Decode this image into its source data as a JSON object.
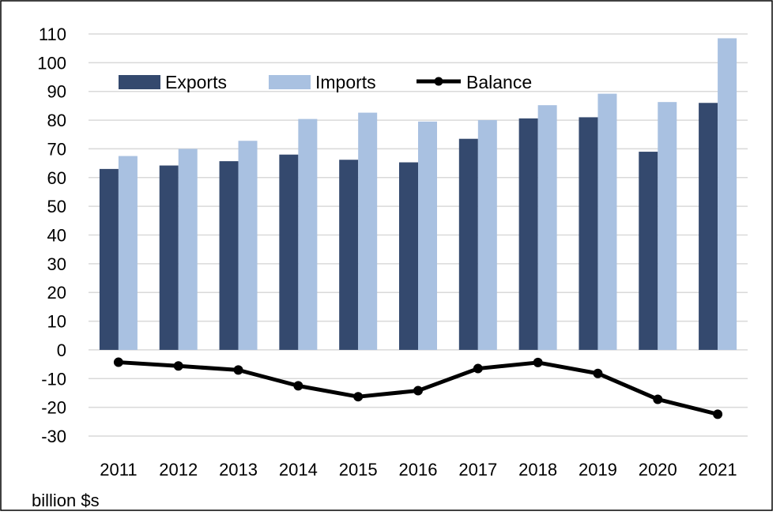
{
  "chart_data": {
    "type": "bar",
    "title": "",
    "xlabel": "",
    "ylabel": "",
    "unit_label": "billion $s",
    "categories": [
      "2011",
      "2012",
      "2013",
      "2014",
      "2015",
      "2016",
      "2017",
      "2018",
      "2019",
      "2020",
      "2021"
    ],
    "ylim": [
      -30,
      110
    ],
    "yticks": [
      "110",
      "100",
      "90",
      "80",
      "70",
      "60",
      "50",
      "40",
      "30",
      "20",
      "10",
      "0",
      "-10",
      "-20",
      "-30"
    ],
    "grid": true,
    "legend_position": "top-left",
    "series": [
      {
        "name": "Exports",
        "kind": "bar",
        "color": "#34496e",
        "values": [
          63,
          64.2,
          65.7,
          68,
          66.2,
          65.3,
          73.5,
          80.6,
          81,
          69,
          86
        ]
      },
      {
        "name": "Imports",
        "kind": "bar",
        "color": "#a9c1e1",
        "values": [
          67.5,
          70,
          72.8,
          80.4,
          82.6,
          79.5,
          80,
          85.2,
          89.2,
          86.3,
          108.5
        ]
      },
      {
        "name": "Balance",
        "kind": "line",
        "color": "#000000",
        "values": [
          -4.3,
          -5.6,
          -7,
          -12.5,
          -16.3,
          -14.2,
          -6.5,
          -4.4,
          -8.2,
          -17.2,
          -22.4
        ]
      }
    ]
  }
}
